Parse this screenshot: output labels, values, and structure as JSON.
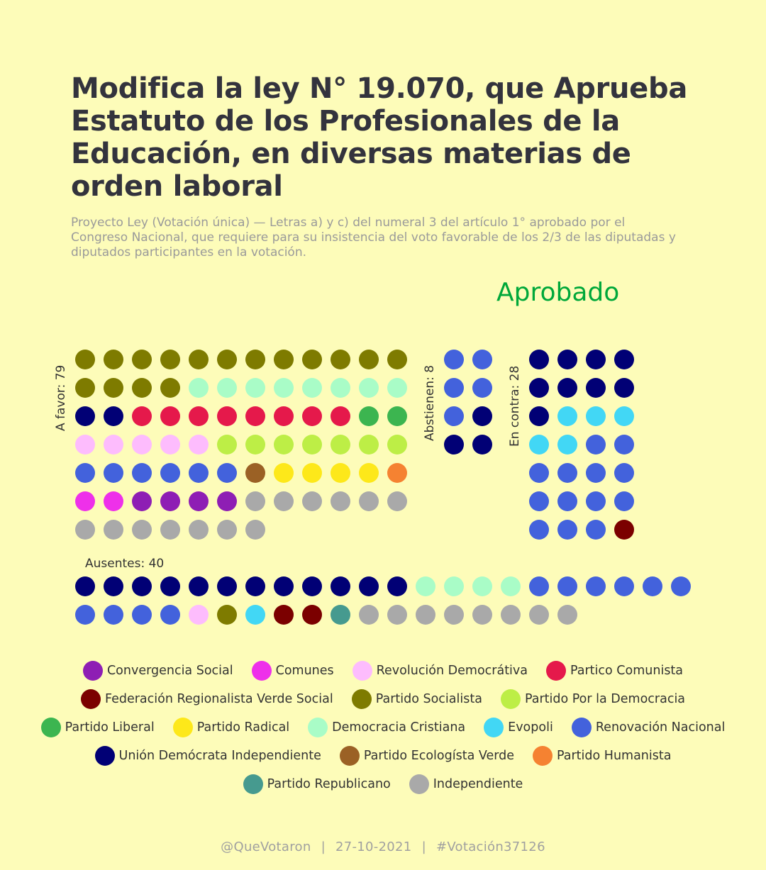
{
  "title": "Modifica la ley N° 19.070, que Aprueba Estatuto de los Profesionales de la Educación, en diversas materias de orden laboral",
  "subtitle": "Proyecto Ley (Votación única) — Letras a) y c) del numeral 3 del artículo 1° aprobado por el Congreso Nacional, que requiere para su insistencia del voto favorable de los 2/3 de las diputadas y diputados participantes en la votación.",
  "result": "Aprobado",
  "footer": {
    "handle": "@QueVotaron",
    "date": "27-10-2021",
    "hashtag": "#Votación37126"
  },
  "chart_data": {
    "type": "waffle",
    "parties": {
      "CS": {
        "name": "Convergencia Social",
        "color": "#8e1eb4"
      },
      "COM": {
        "name": "Comunes",
        "color": "#ee30ea"
      },
      "RD": {
        "name": "Revolución Democrátiva",
        "color": "#fdbcfd"
      },
      "PC": {
        "name": "Partico Comunista",
        "color": "#e5194b"
      },
      "FRVS": {
        "name": "Federación Regionalista Verde Social",
        "color": "#7b0000"
      },
      "PS": {
        "name": "Partido Socialista",
        "color": "#7e7b00"
      },
      "PPD": {
        "name": "Partido Por la Democracia",
        "color": "#bdee46"
      },
      "PL": {
        "name": "Partido Liberal",
        "color": "#3cb550"
      },
      "PR": {
        "name": "Partido Radical",
        "color": "#fde81a"
      },
      "DC": {
        "name": "Democracia Cristiana",
        "color": "#a9fcc7"
      },
      "EVO": {
        "name": "Evopoli",
        "color": "#42d7f5"
      },
      "RN": {
        "name": "Renovación Nacional",
        "color": "#4362dc"
      },
      "UDI": {
        "name": "Unión Demócrata Independiente",
        "color": "#010075"
      },
      "PEV": {
        "name": "Partido Ecologísta Verde",
        "color": "#9b6125"
      },
      "PH": {
        "name": "Partido Humanista",
        "color": "#f58231"
      },
      "REP": {
        "name": "Partido Republicano",
        "color": "#469a8f"
      },
      "IND": {
        "name": "Independiente",
        "color": "#a9a9a9"
      }
    },
    "legend_rows": [
      [
        "CS",
        "COM",
        "RD",
        "PC"
      ],
      [
        "FRVS",
        "PS",
        "PPD"
      ],
      [
        "PL",
        "PR",
        "DC",
        "EVO",
        "RN"
      ],
      [
        "UDI",
        "PEV",
        "PH"
      ],
      [
        "REP",
        "IND"
      ]
    ],
    "groups": [
      {
        "label": "A favor: 79",
        "count": 79,
        "members": [
          [
            "PS",
            16
          ],
          [
            "DC",
            8
          ],
          [
            "UDI",
            2
          ],
          [
            "PC",
            8
          ],
          [
            "PL",
            2
          ],
          [
            "RD",
            5
          ],
          [
            "PPD",
            7
          ],
          [
            "RN",
            6
          ],
          [
            "PEV",
            1
          ],
          [
            "PR",
            4
          ],
          [
            "PH",
            1
          ],
          [
            "COM",
            2
          ],
          [
            "CS",
            4
          ],
          [
            "IND",
            13
          ]
        ]
      },
      {
        "label": "Abstienen: 8",
        "count": 8,
        "members": [
          [
            "RN",
            5
          ],
          [
            "UDI",
            3
          ]
        ]
      },
      {
        "label": "En contra: 28",
        "count": 28,
        "members": [
          [
            "UDI",
            9
          ],
          [
            "EVO",
            5
          ],
          [
            "RN",
            13
          ],
          [
            "FRVS",
            1
          ]
        ]
      },
      {
        "label": "Ausentes: 40",
        "count": 40,
        "members": [
          [
            "UDI",
            12
          ],
          [
            "DC",
            4
          ],
          [
            "RN",
            10
          ],
          [
            "RD",
            1
          ],
          [
            "PS",
            1
          ],
          [
            "EVO",
            1
          ],
          [
            "FRVS",
            2
          ],
          [
            "REP",
            1
          ],
          [
            "IND",
            8
          ]
        ]
      }
    ]
  }
}
